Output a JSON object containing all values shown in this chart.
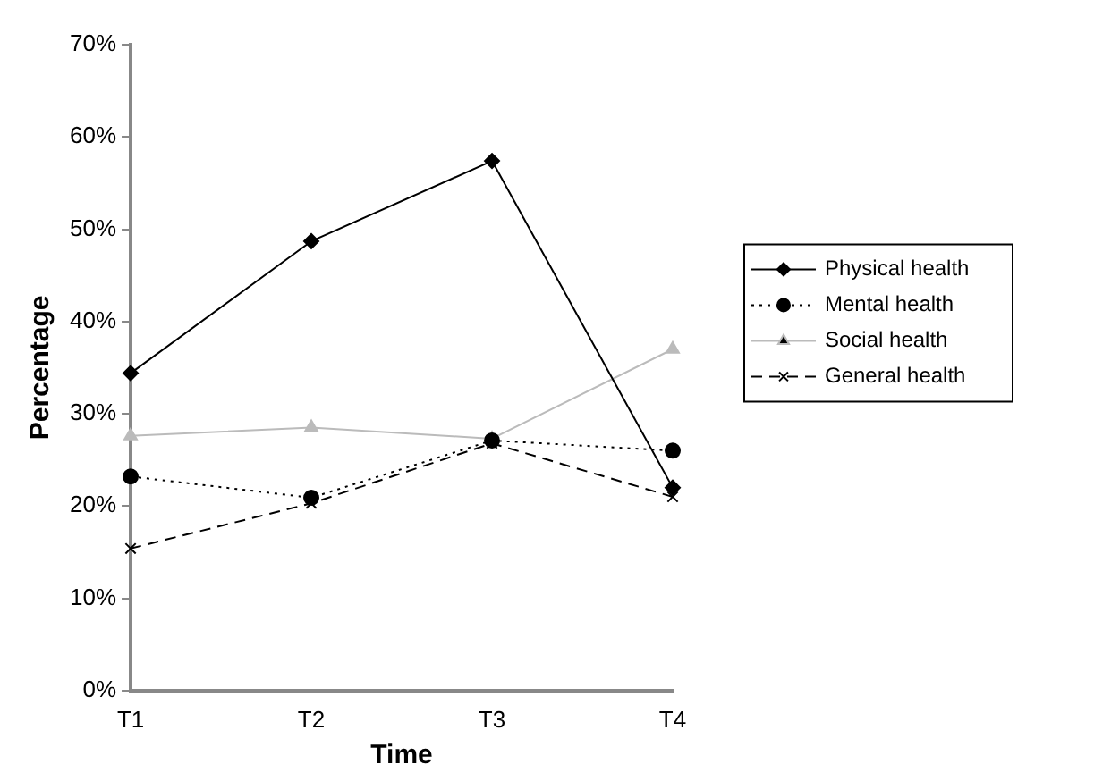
{
  "chart_data": {
    "type": "line",
    "xlabel": "Time",
    "ylabel": "Percentage",
    "categories": [
      "T1",
      "T2",
      "T3",
      "T4"
    ],
    "series": [
      {
        "name": "Physical health",
        "color": "#000000",
        "marker": "diamond",
        "line_style": "solid",
        "values": [
          34.4,
          48.7,
          57.4,
          22
        ]
      },
      {
        "name": "Mental health",
        "color": "#000000",
        "marker": "circle",
        "line_style": "dotted",
        "values": [
          23.2,
          20.9,
          27.1,
          26
        ]
      },
      {
        "name": "Social health",
        "color": "#bbbbbb",
        "marker": "triangle",
        "line_style": "solid",
        "values": [
          27.6,
          28.5,
          27.3,
          37
        ]
      },
      {
        "name": "General health",
        "color": "#000000",
        "marker": "cross",
        "line_style": "dashed",
        "values": [
          15.4,
          20.3,
          26.8,
          21
        ]
      }
    ],
    "ylim": [
      0,
      70
    ],
    "yticks": [
      {
        "value": 0,
        "label": "0%"
      },
      {
        "value": 10,
        "label": "10%"
      },
      {
        "value": 20,
        "label": "20%"
      },
      {
        "value": 30,
        "label": "30%"
      },
      {
        "value": 40,
        "label": "40%"
      },
      {
        "value": 50,
        "label": "50%"
      },
      {
        "value": 60,
        "label": "60%"
      },
      {
        "value": 70,
        "label": "70%"
      }
    ],
    "grid": false,
    "legend": "right"
  }
}
